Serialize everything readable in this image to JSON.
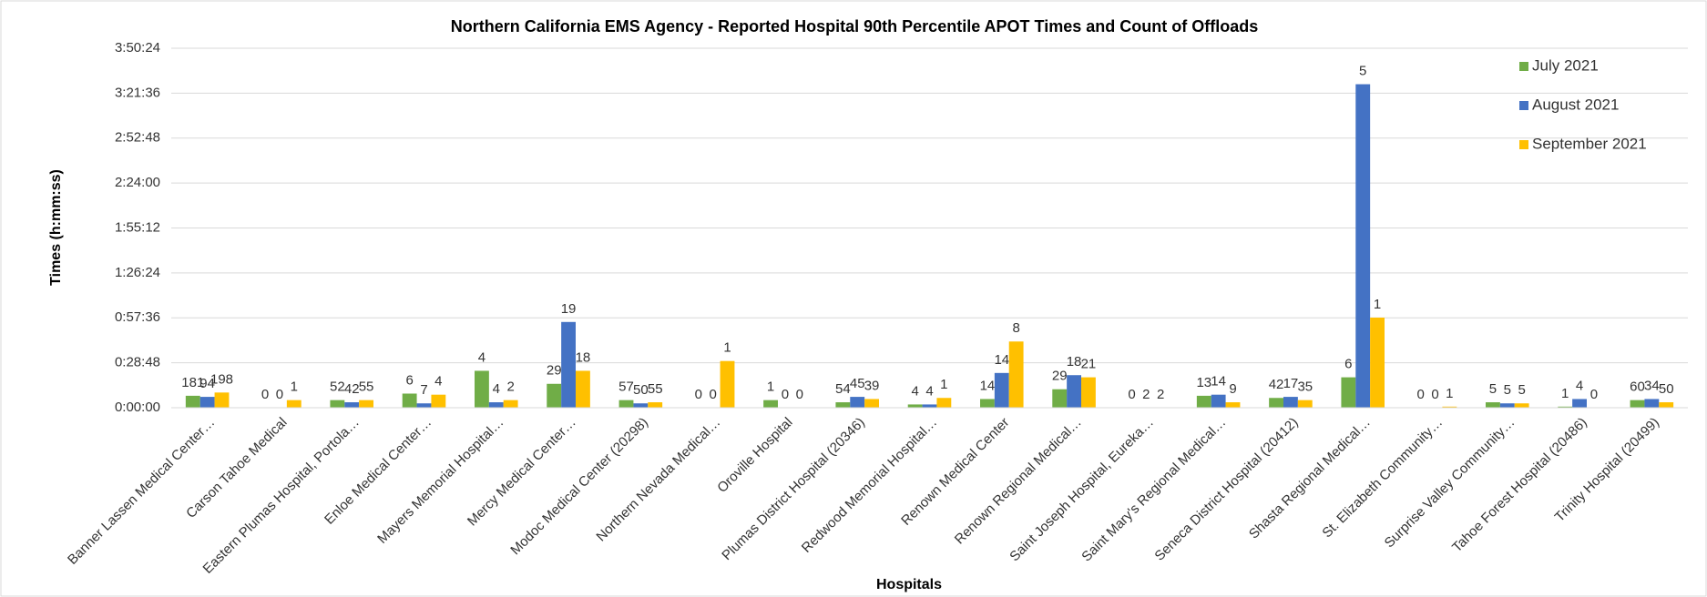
{
  "chart_data": {
    "type": "bar",
    "title": "Northern California EMS Agency - Reported Hospital 90th Percentile APOT Times and Count of Offloads",
    "y_label": "Times (h:mm:ss)",
    "x_label": "Hospitals",
    "categories": [
      "Banner Lassen Medical Center…",
      "Carson Tahoe Medical",
      "Eastern Plumas Hospital, Portola…",
      "Enloe Medical Center…",
      "Mayers Memorial Hospital…",
      "Mercy Medical Center…",
      "Modoc Medical Center (20298)",
      "Northern Nevada Medical…",
      "Oroville Hospital",
      "Plumas District Hospital (20346)",
      "Redwood Memorial Hospital…",
      "Renown Medical Center",
      "Renown Regional Medical…",
      "Saint Joseph Hospital, Eureka…",
      "Saint Mary's Regional Medical…",
      "Seneca District Hospital (20412)",
      "Shasta Regional Medical…",
      "St. Elizabeth Community…",
      "Surprise Valley Community…",
      "Tahoe Forest Hospital (20486)",
      "Trinity Hospital (20499)"
    ],
    "series": [
      {
        "name": "July 2021",
        "color": "#70ad47",
        "values": [
          459,
          0,
          292,
          543,
          1419,
          918,
          292,
          0,
          292,
          209,
          125,
          334,
          710,
          0,
          459,
          376,
          1169,
          0,
          209,
          42,
          292
        ],
        "counts": [
          181,
          0,
          52,
          6,
          4,
          29,
          57,
          0,
          1,
          54,
          4,
          14,
          29,
          0,
          13,
          42,
          6,
          0,
          5,
          1,
          60
        ]
      },
      {
        "name": "August 2021",
        "color": "#4472c4",
        "values": [
          417,
          0,
          209,
          167,
          209,
          3297,
          167,
          0,
          0,
          417,
          125,
          1336,
          1252,
          0,
          501,
          417,
          12440,
          0,
          167,
          334,
          334
        ],
        "counts": [
          94,
          0,
          42,
          7,
          4,
          19,
          50,
          0,
          0,
          45,
          4,
          14,
          18,
          2,
          14,
          17,
          5,
          0,
          5,
          4,
          34
        ]
      },
      {
        "name": "September 2021",
        "color": "#ffc000",
        "values": [
          584,
          292,
          292,
          501,
          292,
          1419,
          209,
          1795,
          0,
          334,
          376,
          2546,
          1169,
          0,
          209,
          292,
          3464,
          42,
          167,
          0,
          209
        ],
        "counts": [
          198,
          1,
          55,
          4,
          2,
          18,
          55,
          1,
          0,
          39,
          1,
          8,
          21,
          2,
          9,
          35,
          1,
          1,
          5,
          0,
          50
        ]
      }
    ],
    "ylim": [
      0,
      13824
    ],
    "yticks": [
      {
        "value": 0,
        "label": "0:00:00"
      },
      {
        "value": 1728,
        "label": "0:28:48"
      },
      {
        "value": 3456,
        "label": "0:57:36"
      },
      {
        "value": 5184,
        "label": "1:26:24"
      },
      {
        "value": 6912,
        "label": "1:55:12"
      },
      {
        "value": 8640,
        "label": "2:24:00"
      },
      {
        "value": 10368,
        "label": "2:52:48"
      },
      {
        "value": 12096,
        "label": "3:21:36"
      },
      {
        "value": 13824,
        "label": "3:50:24"
      }
    ],
    "grid": true,
    "legend": "top-right"
  }
}
